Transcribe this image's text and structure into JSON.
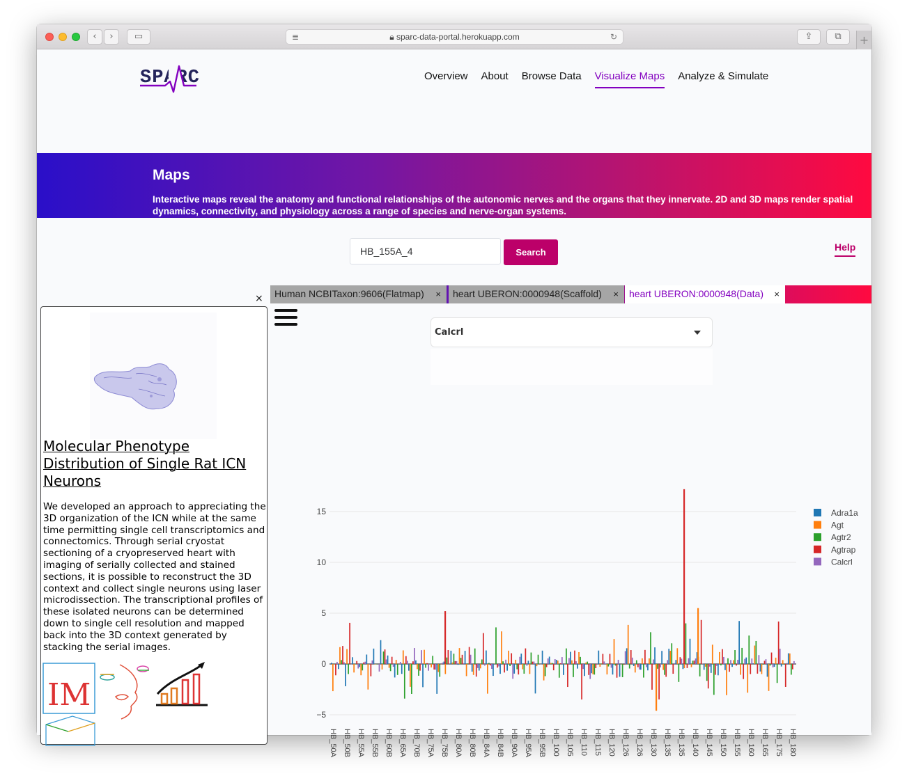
{
  "browser": {
    "url": "sparc-data-portal.herokuapp.com",
    "lock_icon": "lock-icon"
  },
  "header": {
    "logo_text": "SPARC",
    "nav": [
      {
        "label": "Overview"
      },
      {
        "label": "About"
      },
      {
        "label": "Browse Data"
      },
      {
        "label": "Visualize Maps",
        "active": true
      },
      {
        "label": "Analyze & Simulate"
      }
    ]
  },
  "banner": {
    "title": "Maps",
    "description": "Interactive maps reveal the anatomy and functional relationships of the autonomic nerves and the organs that they innervate. 2D and 3D maps render spatial dynamics, connectivity, and physiology across a range of species and nerve-organ systems."
  },
  "search": {
    "value": "HB_155A_4",
    "button_label": "Search",
    "help_label": "Help"
  },
  "tabs": [
    {
      "label": "Human NCBITaxon:9606(Flatmap)",
      "close": "×"
    },
    {
      "label": "heart UBERON:0000948(Scaffold)",
      "close": "×"
    },
    {
      "label": "heart UBERON:0000948(Data)",
      "close": "×",
      "active": true
    }
  ],
  "left_panel": {
    "close": "×",
    "title": "Molecular Phenotype Distribution of Single Rat ICN Neurons",
    "description": "We developed an approach to appreciating the 3D organization of the ICN while at the same time permitting single cell transcriptomics and connectomics. Through serial cryostat sectioning of a cryopreserved heart with imaging of serially collected and stained sections, it is possible to reconstruct the 3D context and collect single neurons using laser microdissection. The transcriptional profiles of these isolated neurons can be determined down to single cell resolution and mapped back into the 3D context generated by stacking the serial images.",
    "icon_badge_text": "IM"
  },
  "selector": {
    "value": "Calcrl"
  },
  "chart_data": {
    "type": "bar",
    "title": "",
    "xlabel": "",
    "ylabel": "",
    "ylim": [
      -5.8,
      18
    ],
    "yticks": [
      -5,
      0,
      5,
      10,
      15
    ],
    "legend": [
      {
        "name": "Adra1a",
        "color": "#1f77b4"
      },
      {
        "name": "Agt",
        "color": "#ff7f0e"
      },
      {
        "name": "Agtr2",
        "color": "#2ca02c"
      },
      {
        "name": "Agtrap",
        "color": "#d62728"
      },
      {
        "name": "Calcrl",
        "color": "#9467bd"
      }
    ],
    "xticks": [
      "HB_50A",
      "HB_50B",
      "HB_55A",
      "HB_55B",
      "HB_60B",
      "HB_65A",
      "HB_70B",
      "HB_75A",
      "HB_75B",
      "HB_80A",
      "HB_80B",
      "HB_84A",
      "HB_84B",
      "HB_90A",
      "HB_95A",
      "HB_95B",
      "HB_100",
      "HB_105",
      "HB_110",
      "HB_115",
      "HB_120",
      "HB_126",
      "HB_126",
      "HB_130",
      "HB_135",
      "HB_135",
      "HB_140",
      "HB_145",
      "HB_150",
      "HB_155",
      "HB_160",
      "HB_165",
      "HB_175",
      "HB_180"
    ],
    "highlights": [
      {
        "x": "HB_140",
        "series": "Agtrap",
        "value": 17.2
      },
      {
        "x": "HB_140",
        "series": "Agt",
        "value": 5.5
      },
      {
        "x": "HB_80A",
        "series": "Agtrap",
        "value": 5.2
      },
      {
        "x": "HB_135",
        "series": "Agt",
        "value": -4.6
      }
    ]
  }
}
